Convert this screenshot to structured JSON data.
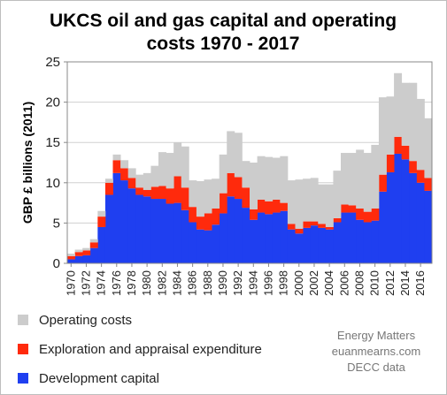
{
  "chart_data": {
    "type": "area",
    "stacked": true,
    "title_lines": [
      "UKCS oil and gas capital and operating",
      "costs 1970 - 2017"
    ],
    "ylabel": "GBP £ billions (2011)",
    "xlabel": "",
    "ylim": [
      0,
      25
    ],
    "yticks": [
      0,
      5,
      10,
      15,
      20,
      25
    ],
    "xticks": [
      "1970",
      "1972",
      "1974",
      "1976",
      "1978",
      "1980",
      "1982",
      "1984",
      "1986",
      "1988",
      "1990",
      "1992",
      "1994",
      "1996",
      "1998",
      "2000",
      "2002",
      "2004",
      "2006",
      "2008",
      "2010",
      "2012",
      "2014",
      "2016"
    ],
    "x": [
      1970,
      1971,
      1972,
      1973,
      1974,
      1975,
      1976,
      1977,
      1978,
      1979,
      1980,
      1981,
      1982,
      1983,
      1984,
      1985,
      1986,
      1987,
      1988,
      1989,
      1990,
      1991,
      1992,
      1993,
      1994,
      1995,
      1996,
      1997,
      1998,
      1999,
      2000,
      2001,
      2002,
      2003,
      2004,
      2005,
      2006,
      2007,
      2008,
      2009,
      2010,
      2011,
      2012,
      2013,
      2014,
      2015,
      2016,
      2017
    ],
    "grid": true,
    "legend_position": "bottom-left",
    "series": [
      {
        "name": "Development capital",
        "color": "#1f3ff0",
        "values": [
          0.5,
          0.9,
          1.0,
          1.9,
          4.5,
          8.5,
          11.2,
          10.3,
          9.3,
          8.5,
          8.3,
          8.0,
          8.0,
          7.4,
          7.5,
          6.6,
          5.1,
          4.2,
          4.1,
          4.8,
          6.2,
          8.3,
          8.0,
          6.9,
          5.4,
          6.3,
          6.1,
          6.3,
          6.5,
          4.2,
          3.7,
          4.4,
          4.7,
          4.4,
          4.2,
          5.1,
          6.3,
          6.3,
          5.4,
          5.1,
          5.3,
          8.9,
          11.3,
          13.6,
          12.9,
          11.2,
          10.0,
          9.0
        ]
      },
      {
        "name": "Exploration and appraisal expenditure",
        "color": "#ff2a0c",
        "values": [
          0.4,
          0.5,
          0.6,
          0.7,
          1.3,
          1.5,
          1.6,
          1.5,
          1.3,
          0.9,
          0.8,
          1.5,
          1.6,
          1.9,
          3.3,
          2.8,
          1.9,
          1.6,
          2.1,
          2.0,
          2.5,
          2.9,
          2.7,
          2.5,
          1.3,
          1.6,
          1.6,
          1.6,
          1.0,
          0.7,
          0.6,
          0.8,
          0.5,
          0.5,
          0.3,
          0.5,
          1.0,
          0.9,
          1.4,
          1.3,
          1.5,
          2.1,
          2.2,
          2.1,
          1.7,
          1.5,
          1.6,
          1.6
        ]
      },
      {
        "name": "Operating costs",
        "color": "#cccccc",
        "values": [
          0.3,
          0.3,
          0.3,
          0.4,
          0.7,
          0.5,
          0.7,
          1.0,
          1.2,
          1.6,
          2.1,
          2.6,
          4.2,
          4.4,
          4.2,
          5.1,
          3.3,
          4.4,
          4.2,
          3.7,
          4.8,
          5.2,
          5.5,
          3.3,
          5.8,
          5.4,
          5.5,
          5.2,
          5.8,
          5.4,
          6.1,
          5.3,
          5.4,
          4.9,
          5.3,
          5.9,
          6.4,
          6.5,
          7.3,
          7.3,
          7.9,
          9.6,
          7.2,
          7.9,
          7.8,
          9.7,
          8.8,
          7.4
        ]
      }
    ]
  },
  "legend_order": [
    "Operating costs",
    "Exploration and appraisal expenditure",
    "Development capital"
  ],
  "credits": [
    "Energy Matters",
    "euanmearns.com",
    "DECC data"
  ]
}
